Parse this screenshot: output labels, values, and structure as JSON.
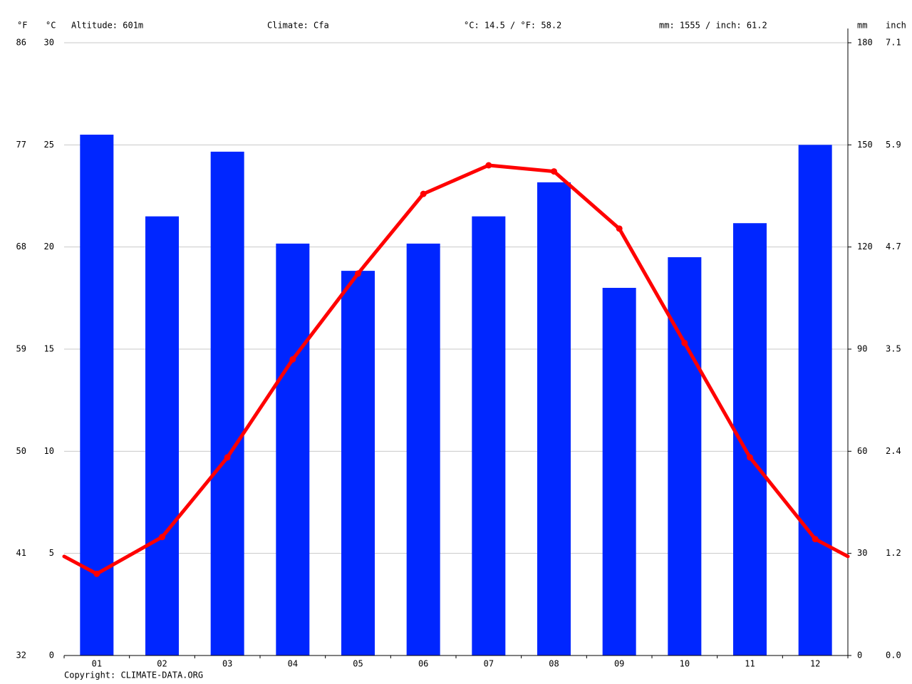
{
  "chart_data": {
    "type": "bar",
    "altitude": "Altitude: 601m",
    "climate": "Climate: Cfa",
    "temperature_summary": "°C: 14.5 / °F: 58.2",
    "precipitation_summary": "mm: 1555 / inch: 61.2",
    "ylabel": "°C",
    "ylabel_f": "°F",
    "y2label": "mm",
    "y2label_inch": "inch",
    "footer": "Copyright: CLIMATE-DATA.ORG",
    "categories": [
      "01",
      "02",
      "03",
      "04",
      "05",
      "06",
      "07",
      "08",
      "09",
      "10",
      "11",
      "12"
    ],
    "series": [
      {
        "type": "bar",
        "axis": "y2",
        "color": "#0026ff",
        "values": [
          153,
          129,
          148,
          121,
          113,
          121,
          129,
          139,
          108,
          117,
          127,
          150
        ]
      },
      {
        "type": "line",
        "color": "#ff0000",
        "values": [
          4.0,
          5.8,
          9.7,
          14.5,
          18.7,
          22.6,
          24.0,
          23.7,
          20.9,
          15.3,
          9.7,
          5.7
        ]
      }
    ],
    "ylim": [
      0,
      30
    ],
    "yticks": [
      0,
      5,
      10,
      15,
      20,
      25,
      30
    ],
    "yticks_f": [
      {
        "value": 0,
        "label": "32"
      },
      {
        "value": 5,
        "label": "41"
      },
      {
        "value": 10,
        "label": "50"
      },
      {
        "value": 15,
        "label": "59"
      },
      {
        "value": 20,
        "label": "68"
      },
      {
        "value": 25,
        "label": "77"
      },
      {
        "value": 30,
        "label": "86"
      }
    ],
    "y2lim": [
      0,
      180
    ],
    "y2ticks": [
      0,
      30,
      60,
      90,
      120,
      150,
      180
    ],
    "y2ticks_inch": [
      {
        "value": 0,
        "label": "0.0"
      },
      {
        "value": 30,
        "label": "1.2"
      },
      {
        "value": 60,
        "label": "2.4"
      },
      {
        "value": 90,
        "label": "3.5"
      },
      {
        "value": 120,
        "label": "4.7"
      },
      {
        "value": 150,
        "label": "5.9"
      },
      {
        "value": 180,
        "label": "7.1"
      }
    ],
    "grid": true,
    "temperature_color": "#ff0000",
    "precipitation_color": "#0026ff"
  }
}
